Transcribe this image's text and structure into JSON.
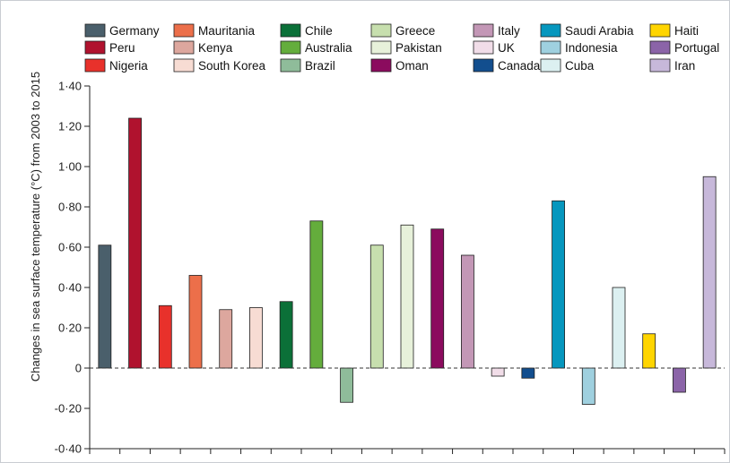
{
  "chart_data": {
    "type": "bar",
    "title": "",
    "xlabel": "",
    "ylabel": "Changes in sea surface temperature (°C) from 2003 to 2015",
    "ylim": [
      -0.4,
      1.4
    ],
    "yticks": [
      "-0·40",
      "-0·20",
      "0",
      "0·20",
      "0·40",
      "0·60",
      "0·80",
      "1·00",
      "1·20",
      "1·40"
    ],
    "yticks_values": [
      -0.4,
      -0.2,
      0,
      0.2,
      0.4,
      0.6,
      0.8,
      1.0,
      1.2,
      1.4
    ],
    "legend_position": "top",
    "zero_line": "dashed",
    "categories": [
      "Germany",
      "Peru",
      "Nigeria",
      "Mauritania",
      "Kenya",
      "South Korea",
      "Chile",
      "Australia",
      "Brazil",
      "Greece",
      "Pakistan",
      "Oman",
      "Italy",
      "UK",
      "Canada",
      "Saudi Arabia",
      "Indonesia",
      "Cuba",
      "Haiti",
      "Portugal",
      "Iran"
    ],
    "values": [
      0.61,
      1.24,
      0.31,
      0.46,
      0.29,
      0.3,
      0.33,
      0.73,
      -0.17,
      0.61,
      0.71,
      0.69,
      0.56,
      -0.04,
      -0.05,
      0.83,
      -0.18,
      0.4,
      0.17,
      -0.12,
      0.95
    ],
    "colors": [
      "#4a5f6b",
      "#b0122e",
      "#e8312b",
      "#ec6f4a",
      "#dda79e",
      "#f7dcd3",
      "#0b7038",
      "#64ad3c",
      "#8fbc9a",
      "#c7dfae",
      "#e7f1da",
      "#8b0b5e",
      "#c397b6",
      "#f1dde8",
      "#124e8e",
      "#0697be",
      "#9fd0df",
      "#dcf0f1",
      "#ffd500",
      "#8b64a8",
      "#c7b8da"
    ],
    "legend": [
      [
        "Germany",
        "Mauritania",
        "Chile",
        "Greece",
        "Italy",
        "Saudi Arabia",
        "Haiti"
      ],
      [
        "Peru",
        "Kenya",
        "Australia",
        "Pakistan",
        "UK",
        "Indonesia",
        "Portugal"
      ],
      [
        "Nigeria",
        "South Korea",
        "Brazil",
        "Oman",
        "Canada",
        "Cuba",
        "Iran"
      ]
    ]
  }
}
